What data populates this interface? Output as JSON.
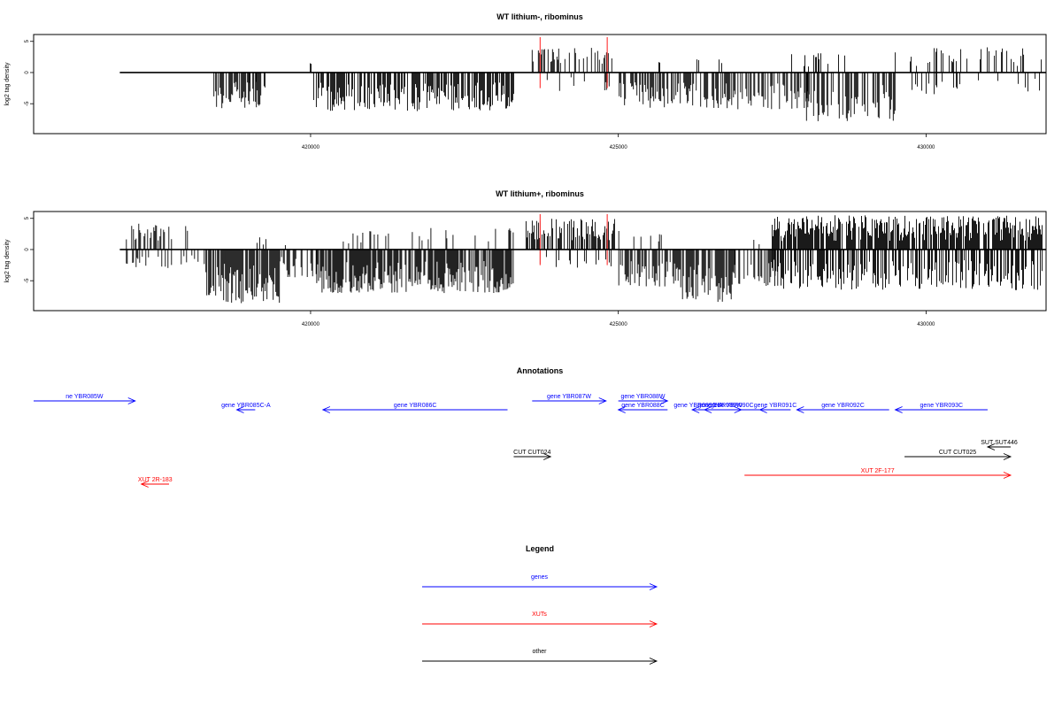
{
  "chart_data": [
    {
      "type": "bar",
      "title": "WT lithium-, ribominus",
      "ylabel": "log2 tag density",
      "xlabel": "",
      "xlim": [
        415500,
        431950
      ],
      "ylim": [
        -9.8,
        6.1
      ],
      "xticks": [
        420000,
        425000,
        430000
      ],
      "yticks": [
        -5,
        0,
        5
      ],
      "x_range": [
        416900,
        431950
      ],
      "baseline": 0,
      "highlight_x": [
        423730,
        424820
      ],
      "highlight_color": "#ff4040",
      "segments": [
        {
          "x0": 416950,
          "x1": 417200,
          "sign": 1,
          "density": 0.04,
          "max": 3.0
        },
        {
          "x0": 418400,
          "x1": 419200,
          "sign": -1,
          "density": 0.7,
          "max": 5.8
        },
        {
          "x0": 419000,
          "x1": 419300,
          "sign": -1,
          "density": 0.3,
          "max": 3.0
        },
        {
          "x0": 419980,
          "x1": 420020,
          "sign": 1,
          "density": 0.5,
          "max": 2.5
        },
        {
          "x0": 420050,
          "x1": 423300,
          "sign": -1,
          "density": 0.7,
          "max": 6.2
        },
        {
          "x0": 423600,
          "x1": 424900,
          "sign": 1,
          "density": 0.45,
          "max": 4.0
        },
        {
          "x0": 423600,
          "x1": 424900,
          "sign": -1,
          "density": 0.08,
          "max": 3.0
        },
        {
          "x0": 425000,
          "x1": 426800,
          "sign": -1,
          "density": 0.6,
          "max": 5.8
        },
        {
          "x0": 425400,
          "x1": 426800,
          "sign": 1,
          "density": 0.05,
          "max": 2.2
        },
        {
          "x0": 426800,
          "x1": 428100,
          "sign": -1,
          "density": 0.5,
          "max": 6.0
        },
        {
          "x0": 427500,
          "x1": 429300,
          "sign": 1,
          "density": 0.06,
          "max": 3.2
        },
        {
          "x0": 428000,
          "x1": 429500,
          "sign": -1,
          "density": 0.6,
          "max": 7.8
        },
        {
          "x0": 429500,
          "x1": 431900,
          "sign": 1,
          "density": 0.15,
          "max": 4.2
        },
        {
          "x0": 429500,
          "x1": 431900,
          "sign": -1,
          "density": 0.12,
          "max": 3.5
        }
      ]
    },
    {
      "type": "bar",
      "title": "WT lithium+, ribominus",
      "ylabel": "log2 tag density",
      "xlabel": "",
      "xlim": [
        415500,
        431950
      ],
      "ylim": [
        -9.8,
        6.1
      ],
      "xticks": [
        420000,
        425000,
        430000
      ],
      "yticks": [
        -5,
        0,
        5
      ],
      "x_range": [
        416900,
        431950
      ],
      "baseline": 0,
      "highlight_x": [
        423730,
        424820
      ],
      "highlight_color": "#ff4040",
      "segments": [
        {
          "x0": 416950,
          "x1": 418000,
          "sign": 1,
          "density": 0.35,
          "max": 4.2
        },
        {
          "x0": 416950,
          "x1": 418300,
          "sign": -1,
          "density": 0.2,
          "max": 3.0
        },
        {
          "x0": 418300,
          "x1": 419500,
          "sign": -1,
          "density": 0.9,
          "max": 8.6
        },
        {
          "x0": 419500,
          "x1": 420100,
          "sign": -1,
          "density": 0.5,
          "max": 4.5
        },
        {
          "x0": 419000,
          "x1": 420000,
          "sign": 1,
          "density": 0.1,
          "max": 2.0
        },
        {
          "x0": 420100,
          "x1": 423300,
          "sign": -1,
          "density": 0.85,
          "max": 7.0
        },
        {
          "x0": 420100,
          "x1": 423300,
          "sign": 1,
          "density": 0.1,
          "max": 3.5
        },
        {
          "x0": 423500,
          "x1": 424950,
          "sign": 1,
          "density": 0.6,
          "max": 5.0
        },
        {
          "x0": 423500,
          "x1": 424950,
          "sign": -1,
          "density": 0.15,
          "max": 3.0
        },
        {
          "x0": 424950,
          "x1": 426000,
          "sign": -1,
          "density": 0.6,
          "max": 6.0
        },
        {
          "x0": 424950,
          "x1": 426000,
          "sign": 1,
          "density": 0.12,
          "max": 3.0
        },
        {
          "x0": 426000,
          "x1": 426900,
          "sign": -1,
          "density": 0.8,
          "max": 8.5
        },
        {
          "x0": 426900,
          "x1": 427600,
          "sign": -1,
          "density": 0.4,
          "max": 6.0
        },
        {
          "x0": 427000,
          "x1": 427500,
          "sign": 1,
          "density": 0.08,
          "max": 2.5
        },
        {
          "x0": 427500,
          "x1": 431900,
          "sign": 1,
          "density": 0.8,
          "max": 5.5
        },
        {
          "x0": 427500,
          "x1": 431900,
          "sign": -1,
          "density": 0.55,
          "max": 6.5
        }
      ]
    },
    {
      "type": "annotation-track",
      "title": "Annotations",
      "xlim": [
        415500,
        431950
      ],
      "colors": {
        "genes": "#0000ff",
        "XUTs": "#ff0000",
        "other": "#000000"
      },
      "features": [
        {
          "label": "ne YBR085W",
          "x0": 415500,
          "x1": 417150,
          "row": 0,
          "dir": "+",
          "kind": "genes"
        },
        {
          "label": "gene YBR085C-A",
          "x0": 418800,
          "x1": 419100,
          "row": 1,
          "dir": "-",
          "kind": "genes"
        },
        {
          "label": "gene YBR086C",
          "x0": 420200,
          "x1": 423200,
          "row": 1,
          "dir": "-",
          "kind": "genes"
        },
        {
          "label": "gene YBR087W",
          "x0": 423600,
          "x1": 424800,
          "row": 0,
          "dir": "+",
          "kind": "genes"
        },
        {
          "label": "gene YBR088W",
          "x0": 425000,
          "x1": 425800,
          "row": 0,
          "dir": "+",
          "kind": "genes"
        },
        {
          "label": "gene YBR088C",
          "x0": 425000,
          "x1": 425800,
          "row": 1,
          "dir": "-",
          "kind": "genes"
        },
        {
          "label": "gene YBR089C-A",
          "x0": 426200,
          "x1": 426400,
          "row": 1,
          "dir": "-",
          "kind": "genes"
        },
        {
          "label": "gene YBR089W",
          "x0": 426300,
          "x1": 427000,
          "row": 1,
          "dir": "+",
          "kind": "genes"
        },
        {
          "label": "gene YBR090C",
          "x0": 426400,
          "x1": 427300,
          "row": 1,
          "dir": "-",
          "kind": "genes"
        },
        {
          "label": "gene YBR091C",
          "x0": 427300,
          "x1": 427800,
          "row": 1,
          "dir": "-",
          "kind": "genes"
        },
        {
          "label": "gene YBR092C",
          "x0": 427900,
          "x1": 429400,
          "row": 1,
          "dir": "-",
          "kind": "genes"
        },
        {
          "label": "gene YBR093C",
          "x0": 429500,
          "x1": 431000,
          "row": 1,
          "dir": "-",
          "kind": "genes"
        },
        {
          "label": "SUT SUT446",
          "x0": 431000,
          "x1": 431950,
          "row": 3,
          "dir": "-",
          "kind": "other"
        },
        {
          "label": "CUT CUT024",
          "x0": 423300,
          "x1": 423900,
          "row": 4,
          "dir": "+",
          "kind": "other"
        },
        {
          "label": "CUT CUT025",
          "x0": 429650,
          "x1": 431900,
          "row": 4,
          "dir": "+",
          "kind": "other"
        },
        {
          "label": "XUT 2F-177",
          "x0": 427050,
          "x1": 431850,
          "row": 5,
          "dir": "+",
          "kind": "XUTs"
        },
        {
          "label": "XUT 2R-183",
          "x0": 417250,
          "x1": 417700,
          "row": 6,
          "dir": "-",
          "kind": "XUTs"
        }
      ]
    }
  ],
  "legend": {
    "title": "Legend",
    "items": [
      {
        "label": "genes",
        "color": "#0000ff"
      },
      {
        "label": "XUTs",
        "color": "#ff0000"
      },
      {
        "label": "other",
        "color": "#000000"
      }
    ]
  }
}
